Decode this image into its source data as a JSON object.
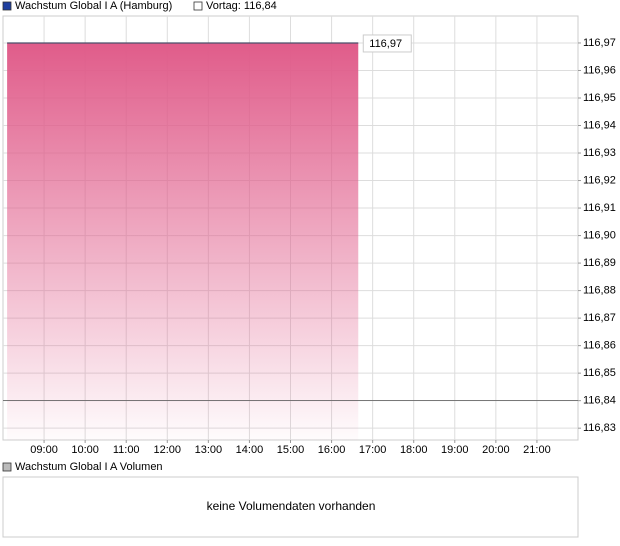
{
  "chart_data": {
    "type": "area",
    "legend": [
      "Wachstum Global I A (Hamburg)",
      "Vortag: 116,84"
    ],
    "previous_close": 116.84,
    "series": [
      {
        "name": "Wachstum Global I A (Hamburg)",
        "color": "#e05c8a",
        "line_color": "#4a4f6a",
        "x": [
          8.1,
          16.65
        ],
        "values": [
          116.97,
          116.97
        ],
        "value_labels": [
          null,
          "116,97"
        ]
      }
    ],
    "xlim": [
      8.0,
      22.0
    ],
    "xticks": [
      {
        "value": 9,
        "label": "09:00"
      },
      {
        "value": 10,
        "label": "10:00"
      },
      {
        "value": 11,
        "label": "11:00"
      },
      {
        "value": 12,
        "label": "12:00"
      },
      {
        "value": 13,
        "label": "13:00"
      },
      {
        "value": 14,
        "label": "14:00"
      },
      {
        "value": 15,
        "label": "15:00"
      },
      {
        "value": 16,
        "label": "16:00"
      },
      {
        "value": 17,
        "label": "17:00"
      },
      {
        "value": 18,
        "label": "18:00"
      },
      {
        "value": 19,
        "label": "19:00"
      },
      {
        "value": 20,
        "label": "20:00"
      },
      {
        "value": 21,
        "label": "21:00"
      }
    ],
    "ylim": [
      116.8257,
      116.9798
    ],
    "yticks": [
      {
        "value": 116.83,
        "label": "116,83"
      },
      {
        "value": 116.84,
        "label": "116,84"
      },
      {
        "value": 116.85,
        "label": "116,85"
      },
      {
        "value": 116.86,
        "label": "116,86"
      },
      {
        "value": 116.87,
        "label": "116,87"
      },
      {
        "value": 116.88,
        "label": "116,88"
      },
      {
        "value": 116.89,
        "label": "116,89"
      },
      {
        "value": 116.9,
        "label": "116,90"
      },
      {
        "value": 116.91,
        "label": "116,91"
      },
      {
        "value": 116.92,
        "label": "116,92"
      },
      {
        "value": 116.93,
        "label": "116,93"
      },
      {
        "value": 116.94,
        "label": "116,94"
      },
      {
        "value": 116.95,
        "label": "116,95"
      },
      {
        "value": 116.96,
        "label": "116,96"
      },
      {
        "value": 116.97,
        "label": "116,97"
      }
    ],
    "grid": true,
    "volume_title": "Wachstum Global I A Volumen",
    "volume_message": "keine Volumendaten vorhanden"
  }
}
